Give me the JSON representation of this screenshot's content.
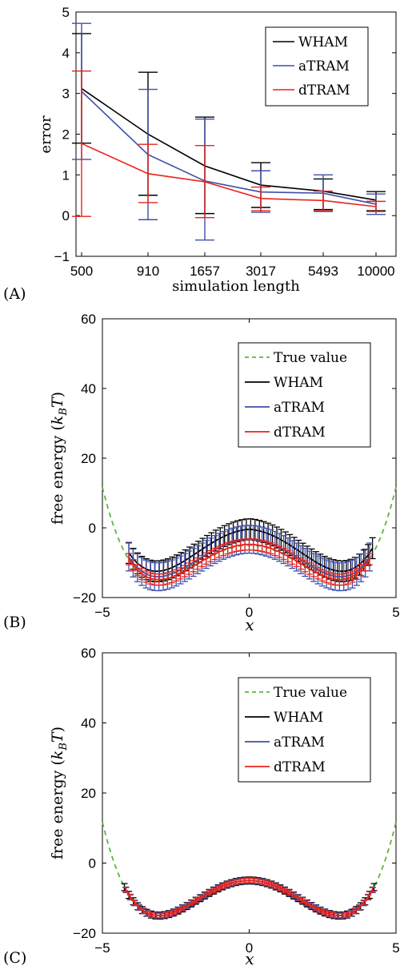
{
  "panels": [
    {
      "id": "A",
      "panel_label": "(A)",
      "chart_data": {
        "type": "line",
        "title": "",
        "xlabel": "simulation length",
        "ylabel": "error",
        "categories": [
          "500",
          "910",
          "1657",
          "3017",
          "5493",
          "10000"
        ],
        "ylim": [
          -1,
          5
        ],
        "yticks": [
          "−1",
          "0",
          "1",
          "2",
          "3",
          "4",
          "5"
        ],
        "grid": false,
        "legend_position": "top-right",
        "series": [
          {
            "name": "WHAM",
            "color": "#000000",
            "values": [
              3.12,
              2.0,
              1.22,
              0.75,
              0.6,
              0.38
            ],
            "err_low": [
              1.78,
              0.5,
              0.05,
              0.2,
              0.15,
              0.12
            ],
            "err_high": [
              4.47,
              3.52,
              2.42,
              1.3,
              0.9,
              0.59
            ]
          },
          {
            "name": "aTRAM",
            "color": "#3f4fa8",
            "values": [
              3.05,
              1.5,
              0.85,
              0.58,
              0.55,
              0.28
            ],
            "err_low": [
              1.38,
              -0.1,
              -0.6,
              0.08,
              0.1,
              0.03
            ],
            "err_high": [
              4.72,
              3.1,
              2.37,
              1.1,
              1.0,
              0.53
            ]
          },
          {
            "name": "dTRAM",
            "color": "#e8231c",
            "values": [
              1.77,
              1.03,
              0.83,
              0.42,
              0.37,
              0.22
            ],
            "err_low": [
              -0.02,
              0.32,
              -0.05,
              0.12,
              0.12,
              0.1
            ],
            "err_high": [
              3.55,
              1.75,
              1.72,
              0.7,
              0.6,
              0.35
            ]
          }
        ]
      }
    },
    {
      "id": "B",
      "panel_label": "(B)",
      "chart_data": {
        "type": "line",
        "title": "",
        "xlabel": "x",
        "ylabel": "free energy (k_B T)",
        "ylabel_prefix": "free energy (",
        "ylabel_k": "k",
        "ylabel_sub": "B",
        "ylabel_T": "T",
        "ylabel_suffix": ")",
        "xlim": [
          -5,
          5
        ],
        "ylim": [
          -20,
          60
        ],
        "xticks": [
          "−5",
          "0",
          "5"
        ],
        "yticks": [
          "−20",
          "0",
          "20",
          "40",
          "60"
        ],
        "grid": false,
        "legend_position": "top-right",
        "curve_model": "free energy double-well: f(x) = (x^2 - 9.5)^2 / 9 - 15 sampled on x in [-4.3, 4.3]",
        "series": [
          {
            "name": "True value",
            "color": "#5fb53f",
            "style": "dashed",
            "range": [
              -5,
              5
            ],
            "offset": 0,
            "err": 0
          },
          {
            "name": "WHAM",
            "color": "#000000",
            "style": "solid",
            "range": [
              -4.1,
              4.2
            ],
            "offset": 4.0,
            "err": 3.0
          },
          {
            "name": "aTRAM",
            "color": "#3f4fa8",
            "style": "solid",
            "range": [
              -4.1,
              4.1
            ],
            "offset": 1.5,
            "err": 4.0
          },
          {
            "name": "dTRAM",
            "color": "#e8231c",
            "style": "solid",
            "range": [
              -4.1,
              4.1
            ],
            "offset": 0.2,
            "err": 1.6
          }
        ]
      }
    },
    {
      "id": "C",
      "panel_label": "(C)",
      "chart_data": {
        "type": "line",
        "title": "",
        "xlabel": "x",
        "ylabel": "free energy (k_B T)",
        "ylabel_prefix": "free energy (",
        "ylabel_k": "k",
        "ylabel_sub": "B",
        "ylabel_T": "T",
        "ylabel_suffix": ")",
        "xlim": [
          -5,
          5
        ],
        "ylim": [
          -20,
          60
        ],
        "xticks": [
          "−5",
          "0",
          "5"
        ],
        "yticks": [
          "−20",
          "0",
          "20",
          "40",
          "60"
        ],
        "grid": false,
        "legend_position": "top-right",
        "series": [
          {
            "name": "True value",
            "color": "#5fb53f",
            "style": "dashed",
            "range": [
              -5,
              5
            ],
            "offset": 0,
            "err": 0
          },
          {
            "name": "WHAM",
            "color": "#000000",
            "style": "solid",
            "range": [
              -4.25,
              4.25
            ],
            "offset": 0,
            "err": 1.0
          },
          {
            "name": "aTRAM",
            "color": "#3f4fa8",
            "style": "solid",
            "range": [
              -4.2,
              4.2
            ],
            "offset": 0,
            "err": 0.8
          },
          {
            "name": "dTRAM",
            "color": "#e8231c",
            "style": "solid",
            "range": [
              -4.2,
              4.2
            ],
            "offset": 0,
            "err": 0.6
          }
        ]
      }
    }
  ]
}
